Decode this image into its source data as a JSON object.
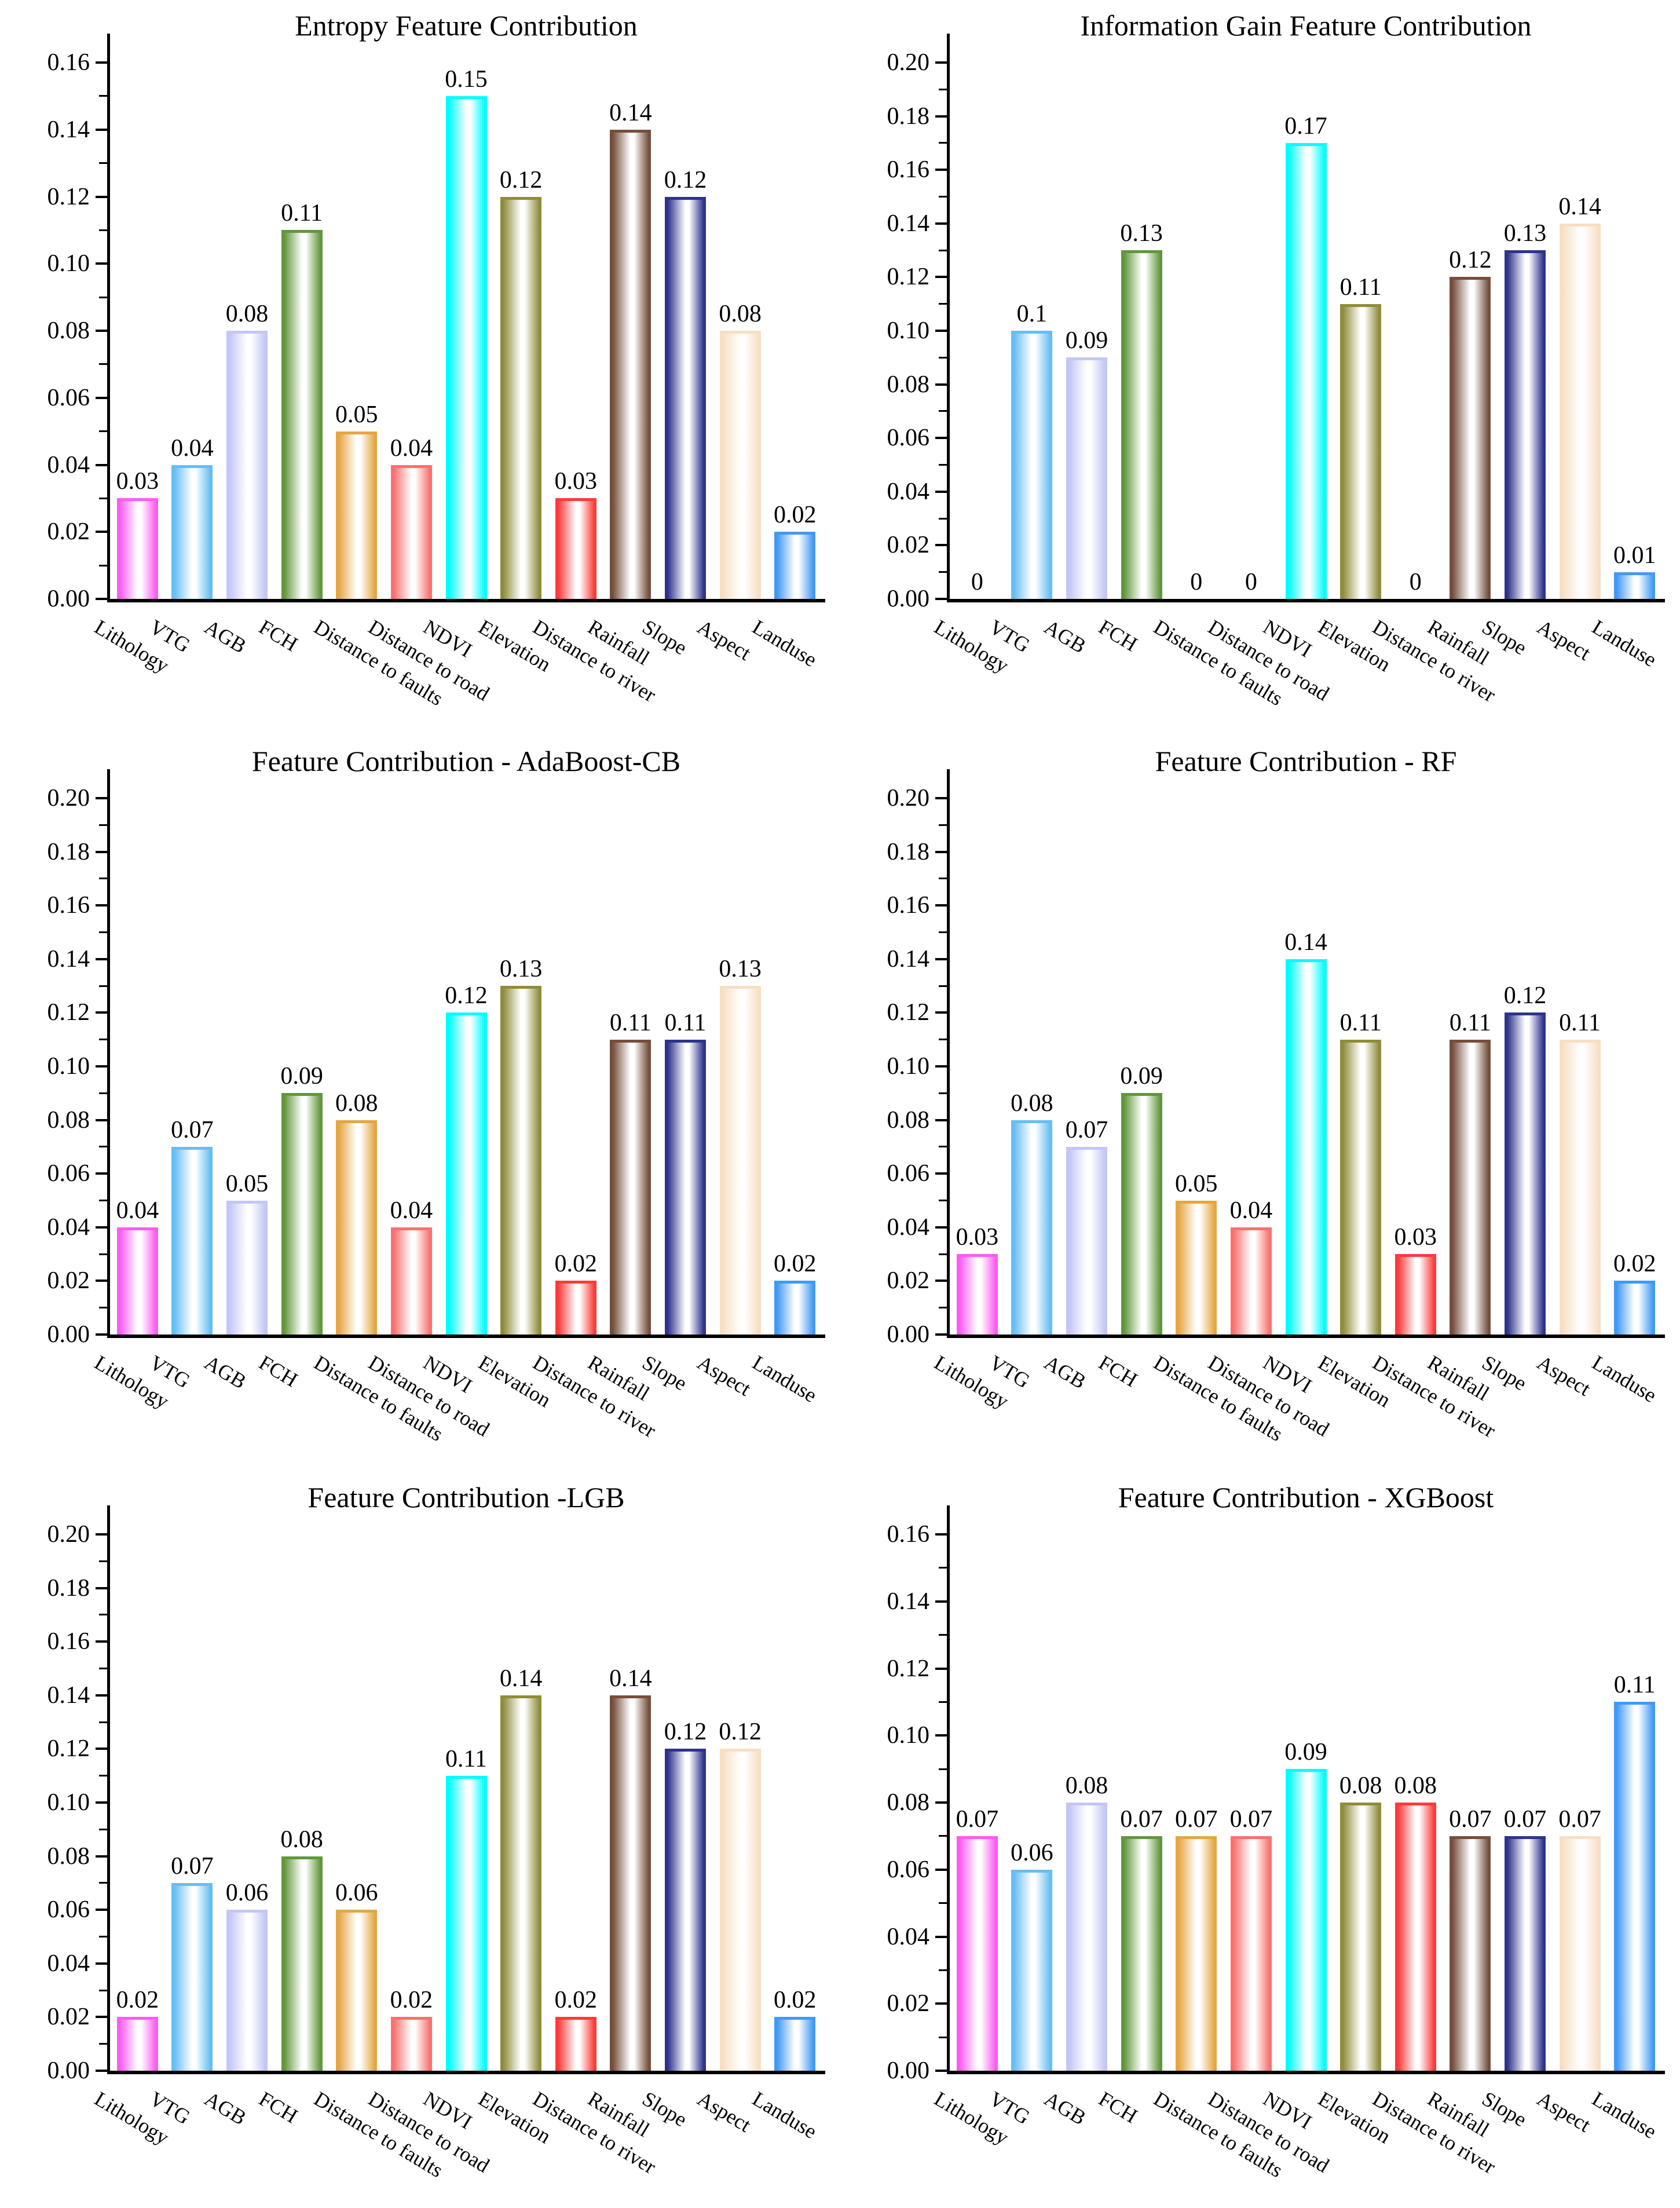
{
  "figure": {
    "background": "#ffffff",
    "text_color": "#000000",
    "axis_color": "#000000"
  },
  "categories": [
    "Lithology",
    "VTG",
    "AGB",
    "FCH",
    "Distance to faults",
    "Distance to road",
    "NDVI",
    "Elevation",
    "Distance to river",
    "Rainfall",
    "Slope",
    "Aspect",
    "Landuse"
  ],
  "category_colors": {
    "Lithology": "#FB5BF1",
    "VTG": "#66BEF4",
    "AGB": "#C3C6F6",
    "FCH": "#61973B",
    "Distance to faults": "#E4A643",
    "Distance to road": "#F8716F",
    "NDVI": "#00FEFE",
    "Elevation": "#8F8C3B",
    "Distance to river": "#FC3A3A",
    "Rainfall": "#754E3B",
    "Slope": "#2D338B",
    "Aspect": "#F7DFC3",
    "Landuse": "#4299F3"
  },
  "chart_data": [
    {
      "type": "bar",
      "title": "Entropy Feature Contribution",
      "categories": [
        "Lithology",
        "VTG",
        "AGB",
        "FCH",
        "Distance to faults",
        "Distance to road",
        "NDVI",
        "Elevation",
        "Distance to river",
        "Rainfall",
        "Slope",
        "Aspect",
        "Landuse"
      ],
      "values": [
        0.03,
        0.04,
        0.08,
        0.11,
        0.05,
        0.04,
        0.15,
        0.12,
        0.03,
        0.14,
        0.12,
        0.08,
        0.02
      ],
      "value_labels": [
        "0.03",
        "0.04",
        "0.08",
        "0.11",
        "0.05",
        "0.04",
        "0.15",
        "0.12",
        "0.03",
        "0.14",
        "0.12",
        "0.08",
        "0.02"
      ],
      "xlabel": "",
      "ylabel": "",
      "ylim": [
        0,
        0.16
      ],
      "ytick_step": 0.02,
      "yminor_step": 0.01,
      "grid": false,
      "legend": "none"
    },
    {
      "type": "bar",
      "title": "Information Gain Feature Contribution",
      "categories": [
        "Lithology",
        "VTG",
        "AGB",
        "FCH",
        "Distance to faults",
        "Distance to road",
        "NDVI",
        "Elevation",
        "Distance to river",
        "Rainfall",
        "Slope",
        "Aspect",
        "Landuse"
      ],
      "values": [
        0,
        0.1,
        0.09,
        0.13,
        0,
        0,
        0.17,
        0.11,
        0,
        0.12,
        0.13,
        0.14,
        0.01
      ],
      "value_labels": [
        "0",
        "0.1",
        "0.09",
        "0.13",
        "0",
        "0",
        "0.17",
        "0.11",
        "0",
        "0.12",
        "0.13",
        "0.14",
        "0.01"
      ],
      "xlabel": "",
      "ylabel": "",
      "ylim": [
        0,
        0.2
      ],
      "ytick_step": 0.02,
      "yminor_step": 0.01,
      "grid": false,
      "legend": "none"
    },
    {
      "type": "bar",
      "title": "Feature Contribution - AdaBoost-CB",
      "categories": [
        "Lithology",
        "VTG",
        "AGB",
        "FCH",
        "Distance to faults",
        "Distance to road",
        "NDVI",
        "Elevation",
        "Distance to river",
        "Rainfall",
        "Slope",
        "Aspect",
        "Landuse"
      ],
      "values": [
        0.04,
        0.07,
        0.05,
        0.09,
        0.08,
        0.04,
        0.12,
        0.13,
        0.02,
        0.11,
        0.11,
        0.13,
        0.02
      ],
      "value_labels": [
        "0.04",
        "0.07",
        "0.05",
        "0.09",
        "0.08",
        "0.04",
        "0.12",
        "0.13",
        "0.02",
        "0.11",
        "0.11",
        "0.13",
        "0.02"
      ],
      "xlabel": "",
      "ylabel": "",
      "ylim": [
        0,
        0.2
      ],
      "ytick_step": 0.02,
      "yminor_step": 0.01,
      "grid": false,
      "legend": "none"
    },
    {
      "type": "bar",
      "title": "Feature Contribution - RF",
      "categories": [
        "Lithology",
        "VTG",
        "AGB",
        "FCH",
        "Distance to faults",
        "Distance to road",
        "NDVI",
        "Elevation",
        "Distance to river",
        "Rainfall",
        "Slope",
        "Aspect",
        "Landuse"
      ],
      "values": [
        0.03,
        0.08,
        0.07,
        0.09,
        0.05,
        0.04,
        0.14,
        0.11,
        0.03,
        0.11,
        0.12,
        0.11,
        0.02
      ],
      "value_labels": [
        "0.03",
        "0.08",
        "0.07",
        "0.09",
        "0.05",
        "0.04",
        "0.14",
        "0.11",
        "0.03",
        "0.11",
        "0.12",
        "0.11",
        "0.02"
      ],
      "xlabel": "",
      "ylabel": "",
      "ylim": [
        0,
        0.2
      ],
      "ytick_step": 0.02,
      "yminor_step": 0.01,
      "grid": false,
      "legend": "none"
    },
    {
      "type": "bar",
      "title": "Feature Contribution -LGB",
      "categories": [
        "Lithology",
        "VTG",
        "AGB",
        "FCH",
        "Distance to faults",
        "Distance to road",
        "NDVI",
        "Elevation",
        "Distance to river",
        "Rainfall",
        "Slope",
        "Aspect",
        "Landuse"
      ],
      "values": [
        0.02,
        0.07,
        0.06,
        0.08,
        0.06,
        0.02,
        0.11,
        0.14,
        0.02,
        0.14,
        0.12,
        0.12,
        0.02
      ],
      "value_labels": [
        "0.02",
        "0.07",
        "0.06",
        "0.08",
        "0.06",
        "0.02",
        "0.11",
        "0.14",
        "0.02",
        "0.14",
        "0.12",
        "0.12",
        "0.02"
      ],
      "xlabel": "",
      "ylabel": "",
      "ylim": [
        0,
        0.2
      ],
      "ytick_step": 0.02,
      "yminor_step": 0.01,
      "grid": false,
      "legend": "none"
    },
    {
      "type": "bar",
      "title": "Feature Contribution - XGBoost",
      "categories": [
        "Lithology",
        "VTG",
        "AGB",
        "FCH",
        "Distance to faults",
        "Distance to road",
        "NDVI",
        "Elevation",
        "Distance to river",
        "Rainfall",
        "Slope",
        "Aspect",
        "Landuse"
      ],
      "values": [
        0.07,
        0.06,
        0.08,
        0.07,
        0.07,
        0.07,
        0.09,
        0.08,
        0.08,
        0.07,
        0.07,
        0.07,
        0.11
      ],
      "value_labels": [
        "0.07",
        "0.06",
        "0.08",
        "0.07",
        "0.07",
        "0.07",
        "0.09",
        "0.08",
        "0.08",
        "0.07",
        "0.07",
        "0.07",
        "0.11"
      ],
      "xlabel": "",
      "ylabel": "",
      "ylim": [
        0,
        0.16
      ],
      "ytick_step": 0.02,
      "yminor_step": 0.01,
      "grid": false,
      "legend": "none"
    }
  ]
}
